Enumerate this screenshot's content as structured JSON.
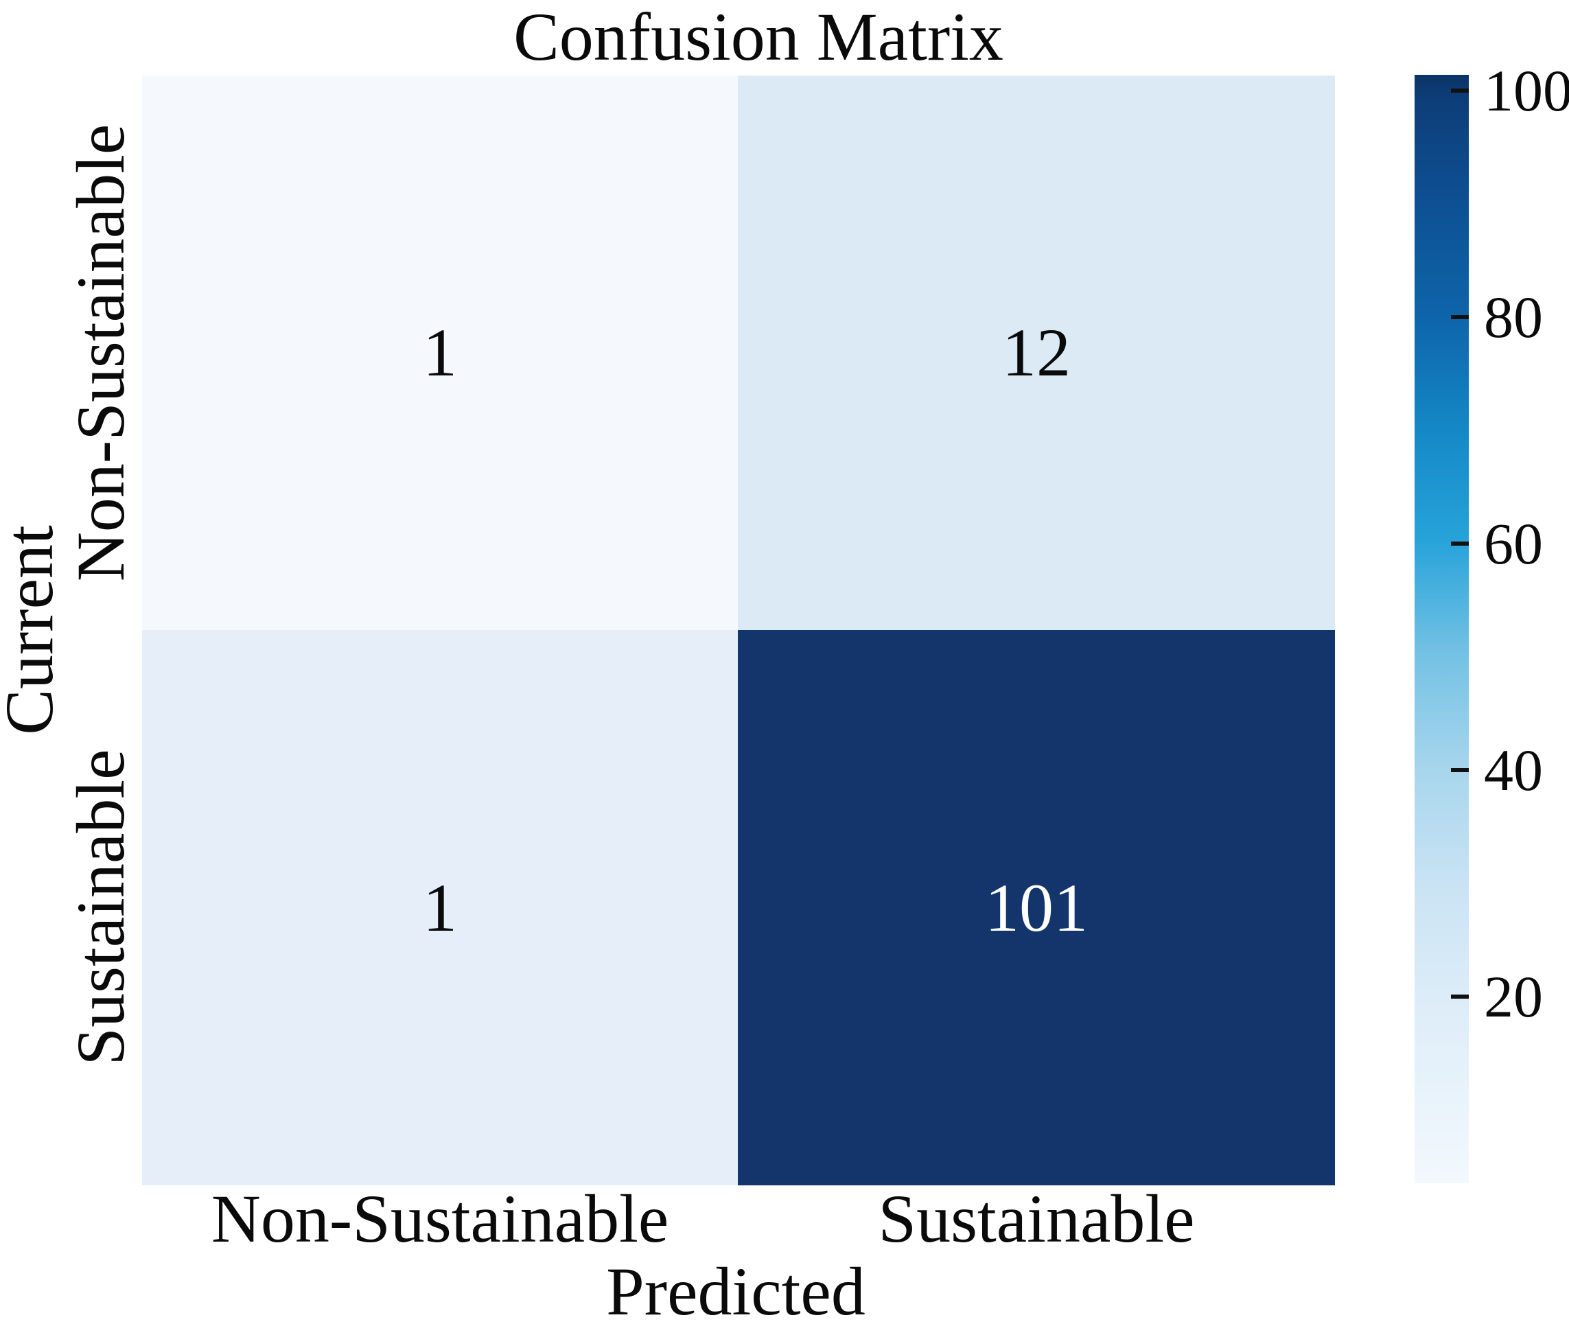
{
  "title": "Confusion Matrix",
  "x_axis": {
    "label": "Predicted",
    "ticks": [
      "Non-Sustainable",
      "Sustainable"
    ]
  },
  "y_axis": {
    "label": "Current",
    "ticks": [
      "Non-Sustainable",
      "Sustainable"
    ]
  },
  "colors": {
    "cell_r0c0": "#f5f9fd",
    "cell_r0c1": "#dceaf6",
    "cell_r1c0": "#e6eff9",
    "cell_r1c1": "#13356b",
    "annotation_on_light": "#000000",
    "annotation_on_dark": "#ffffff",
    "colorbar_min": "#f3f9fd",
    "colorbar_max": "#0b3366"
  },
  "chart_data": {
    "type": "heatmap",
    "title": "Confusion Matrix",
    "xlabel": "Predicted",
    "ylabel": "Current",
    "x_categories": [
      "Non-Sustainable",
      "Sustainable"
    ],
    "y_categories": [
      "Non-Sustainable",
      "Sustainable"
    ],
    "matrix": [
      [
        1,
        12
      ],
      [
        1,
        101
      ]
    ],
    "colorbar": {
      "orientation": "vertical",
      "position": "right",
      "colormap": "Blues",
      "tick_labels": [
        "100",
        "80",
        "60",
        "40",
        "20"
      ],
      "range_min": 1,
      "range_max": 101
    },
    "grid": false,
    "legend": false
  }
}
